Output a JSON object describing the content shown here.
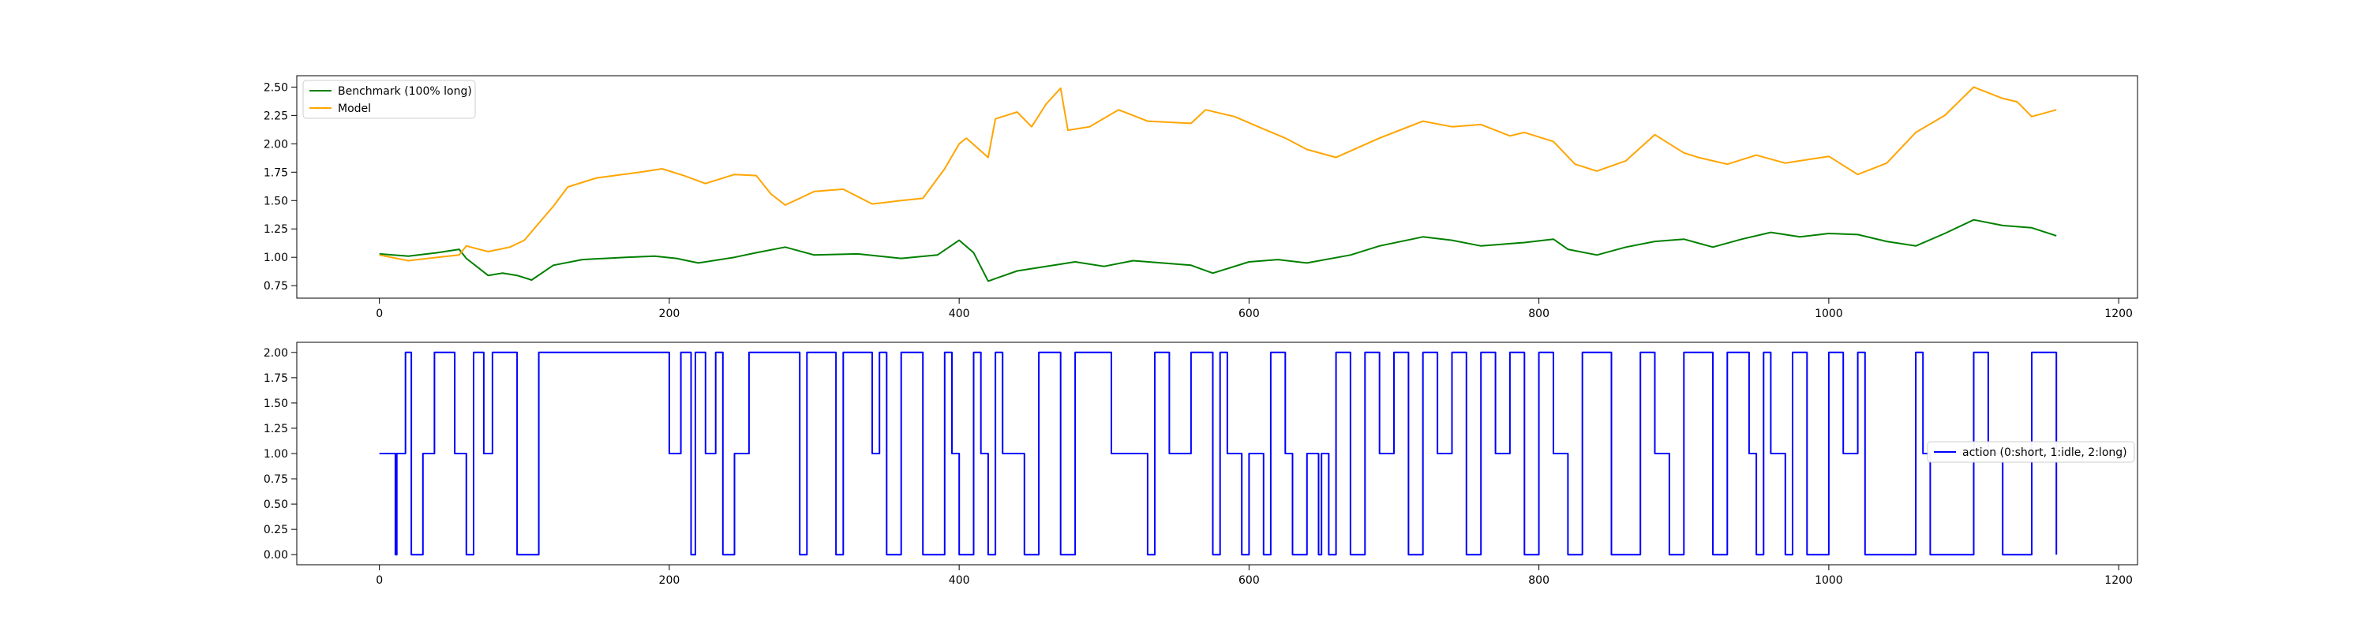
{
  "chart_data": [
    {
      "type": "line",
      "title": "",
      "xlabel": "",
      "ylabel": "",
      "xlim": [
        -57,
        1213
      ],
      "ylim": [
        0.64,
        2.6
      ],
      "xticks": [
        0,
        200,
        400,
        600,
        800,
        1000,
        1200
      ],
      "yticks": [
        0.75,
        1.0,
        1.25,
        1.5,
        1.75,
        2.0,
        2.25,
        2.5
      ],
      "ytick_decimals": 2,
      "grid": false,
      "legend": "upper-left",
      "series": [
        {
          "name": "Benchmark (100% long)",
          "color": "#008000",
          "x": [
            0,
            20,
            40,
            55,
            60,
            75,
            85,
            95,
            105,
            120,
            140,
            170,
            190,
            205,
            220,
            245,
            260,
            280,
            300,
            330,
            360,
            385,
            400,
            410,
            420,
            440,
            460,
            480,
            500,
            520,
            540,
            560,
            575,
            600,
            620,
            640,
            670,
            690,
            720,
            740,
            760,
            790,
            810,
            820,
            840,
            860,
            880,
            900,
            920,
            940,
            960,
            980,
            1000,
            1020,
            1040,
            1060,
            1080,
            1100,
            1120,
            1140,
            1157
          ],
          "y": [
            1.03,
            1.01,
            1.04,
            1.07,
            0.99,
            0.84,
            0.86,
            0.84,
            0.8,
            0.93,
            0.98,
            1.0,
            1.01,
            0.99,
            0.95,
            1.0,
            1.04,
            1.09,
            1.02,
            1.03,
            0.99,
            1.02,
            1.15,
            1.04,
            0.79,
            0.88,
            0.92,
            0.96,
            0.92,
            0.97,
            0.95,
            0.93,
            0.86,
            0.96,
            0.98,
            0.95,
            1.02,
            1.1,
            1.18,
            1.15,
            1.1,
            1.13,
            1.16,
            1.07,
            1.02,
            1.09,
            1.14,
            1.16,
            1.09,
            1.16,
            1.22,
            1.18,
            1.21,
            1.2,
            1.14,
            1.1,
            1.21,
            1.33,
            1.28,
            1.26,
            1.19
          ]
        },
        {
          "name": "Model",
          "color": "#FFA500",
          "x": [
            0,
            20,
            40,
            55,
            60,
            75,
            90,
            100,
            110,
            120,
            130,
            150,
            180,
            195,
            210,
            225,
            245,
            260,
            270,
            280,
            300,
            320,
            340,
            360,
            375,
            390,
            400,
            405,
            420,
            425,
            440,
            450,
            460,
            470,
            475,
            490,
            510,
            530,
            560,
            570,
            590,
            610,
            625,
            640,
            660,
            690,
            720,
            740,
            760,
            780,
            790,
            810,
            825,
            840,
            860,
            880,
            900,
            910,
            930,
            950,
            970,
            980,
            1000,
            1020,
            1040,
            1060,
            1080,
            1100,
            1120,
            1130,
            1140,
            1157
          ],
          "y": [
            1.02,
            0.97,
            1.0,
            1.02,
            1.1,
            1.05,
            1.09,
            1.15,
            1.3,
            1.45,
            1.62,
            1.7,
            1.75,
            1.78,
            1.72,
            1.65,
            1.73,
            1.72,
            1.56,
            1.46,
            1.58,
            1.6,
            1.47,
            1.5,
            1.52,
            1.78,
            2.0,
            2.05,
            1.88,
            2.22,
            2.28,
            2.15,
            2.35,
            2.49,
            2.12,
            2.15,
            2.3,
            2.2,
            2.18,
            2.3,
            2.24,
            2.13,
            2.05,
            1.95,
            1.88,
            2.05,
            2.2,
            2.15,
            2.17,
            2.07,
            2.1,
            2.02,
            1.82,
            1.76,
            1.85,
            2.08,
            1.92,
            1.88,
            1.82,
            1.9,
            1.83,
            1.85,
            1.89,
            1.73,
            1.83,
            2.1,
            2.25,
            2.5,
            2.4,
            2.37,
            2.24,
            2.3
          ]
        }
      ]
    },
    {
      "type": "line",
      "title": "",
      "xlabel": "",
      "ylabel": "",
      "xlim": [
        -57,
        1213
      ],
      "ylim": [
        -0.1,
        2.1
      ],
      "xticks": [
        0,
        200,
        400,
        600,
        800,
        1000,
        1200
      ],
      "yticks": [
        0.0,
        0.25,
        0.5,
        0.75,
        1.0,
        1.25,
        1.5,
        1.75,
        2.0
      ],
      "ytick_decimals": 2,
      "grid": false,
      "legend": "center-right",
      "series": [
        {
          "name": "action (0:short, 1:idle, 2:long)",
          "color": "#0000FF",
          "x": [
            0,
            10,
            11,
            12,
            18,
            22,
            30,
            38,
            52,
            60,
            65,
            72,
            78,
            95,
            110,
            200,
            208,
            215,
            218,
            225,
            232,
            237,
            245,
            255,
            290,
            295,
            315,
            320,
            340,
            345,
            350,
            360,
            375,
            390,
            395,
            400,
            410,
            415,
            420,
            425,
            430,
            445,
            455,
            470,
            480,
            505,
            530,
            535,
            545,
            560,
            575,
            580,
            585,
            595,
            600,
            610,
            615,
            625,
            630,
            640,
            648,
            650,
            655,
            660,
            670,
            680,
            690,
            700,
            710,
            720,
            730,
            740,
            750,
            760,
            770,
            780,
            790,
            800,
            810,
            820,
            830,
            850,
            870,
            880,
            890,
            900,
            920,
            930,
            945,
            950,
            955,
            960,
            970,
            975,
            985,
            1000,
            1010,
            1020,
            1025,
            1060,
            1065,
            1070,
            1100,
            1110,
            1120,
            1140,
            1157
          ],
          "y": [
            1,
            1,
            0,
            1,
            2,
            0,
            1,
            2,
            1,
            0,
            2,
            1,
            2,
            0,
            2,
            1,
            2,
            0,
            2,
            1,
            2,
            0,
            1,
            2,
            0,
            2,
            0,
            2,
            1,
            2,
            0,
            2,
            0,
            2,
            1,
            0,
            2,
            1,
            0,
            2,
            1,
            0,
            2,
            0,
            2,
            1,
            0,
            2,
            1,
            2,
            0,
            2,
            1,
            0,
            1,
            0,
            2,
            1,
            0,
            1,
            0,
            1,
            0,
            2,
            0,
            2,
            1,
            2,
            0,
            2,
            1,
            2,
            0,
            2,
            1,
            2,
            0,
            2,
            1,
            0,
            2,
            0,
            2,
            1,
            0,
            2,
            0,
            2,
            1,
            0,
            2,
            1,
            0,
            2,
            0,
            2,
            1,
            2,
            0,
            2,
            1,
            0,
            2,
            1,
            0,
            2,
            0
          ]
        }
      ]
    }
  ]
}
